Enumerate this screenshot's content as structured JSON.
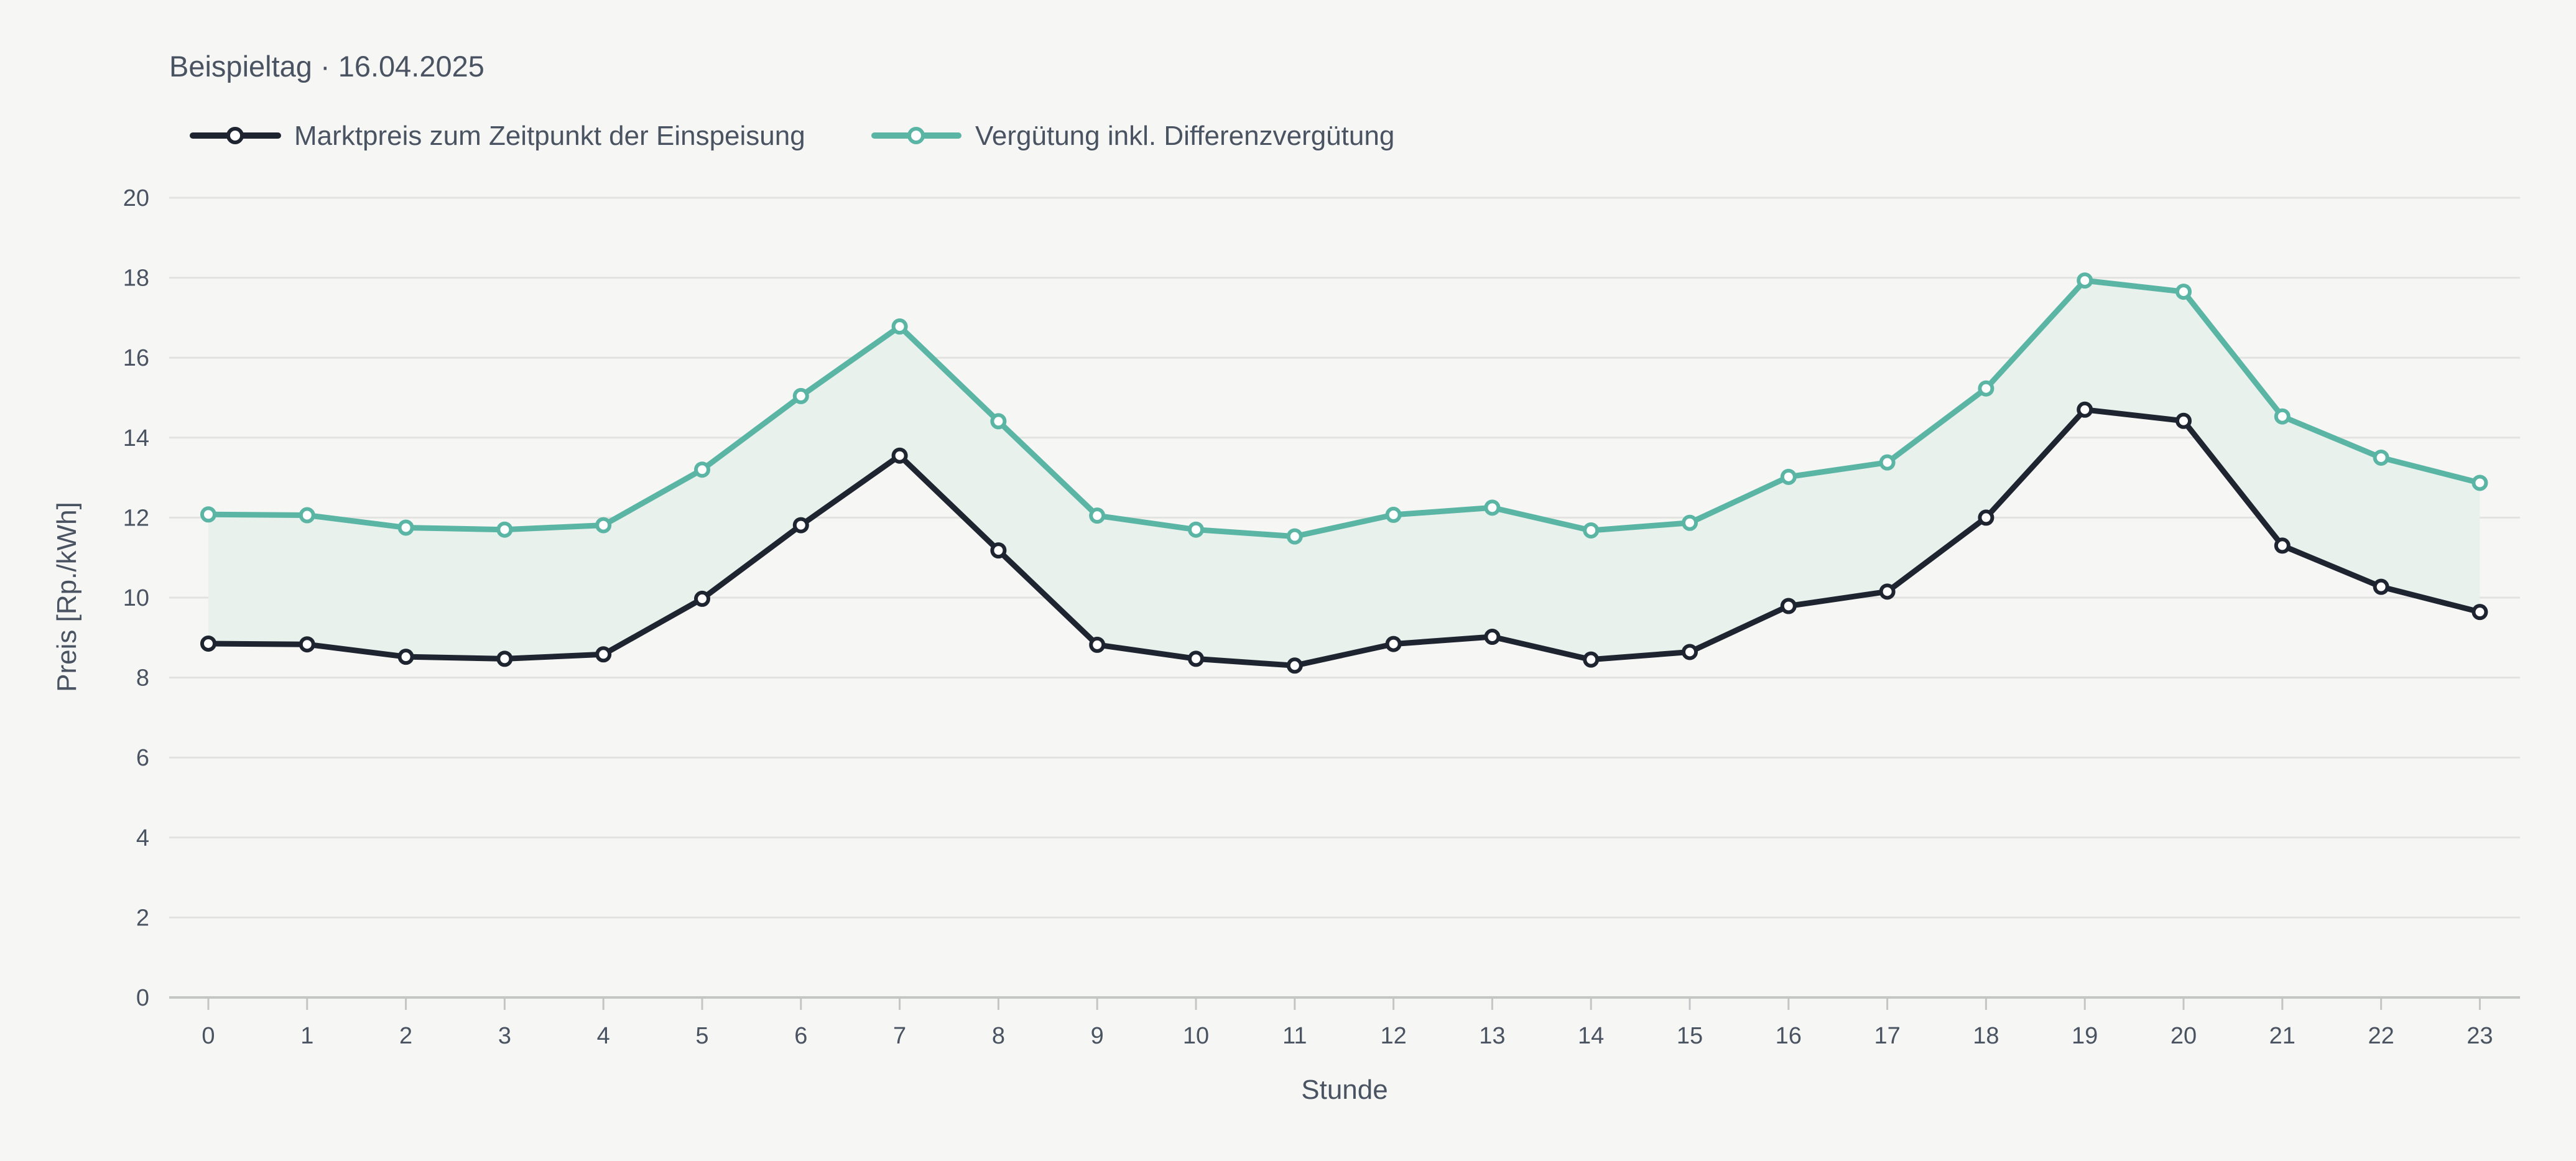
{
  "chart_data": {
    "type": "line",
    "subtitle": "Beispieltag · 16.04.2025",
    "xlabel": "Stunde",
    "ylabel": "Preis [Rp./kWh]",
    "ylim": [
      0,
      20
    ],
    "yticks": [
      "0",
      "2",
      "4",
      "6",
      "8",
      "10",
      "12",
      "14",
      "16",
      "18",
      "20"
    ],
    "categories": [
      "0",
      "1",
      "2",
      "3",
      "4",
      "5",
      "6",
      "7",
      "8",
      "9",
      "10",
      "11",
      "12",
      "13",
      "14",
      "15",
      "16",
      "17",
      "18",
      "19",
      "20",
      "21",
      "22",
      "23"
    ],
    "grid": "horizontal",
    "legend_position": "top-left",
    "shaded_band_between_series": true,
    "band_color": "#e8f1ec",
    "series": [
      {
        "name": "Marktpreis zum Zeitpunkt der Einspeisung",
        "color": "#1f2530",
        "values": [
          8.85,
          8.83,
          8.52,
          8.47,
          8.58,
          9.97,
          11.81,
          13.55,
          11.18,
          8.82,
          8.47,
          8.3,
          8.84,
          9.02,
          8.45,
          8.64,
          9.79,
          10.15,
          12.0,
          14.7,
          14.42,
          11.3,
          10.27,
          9.64
        ]
      },
      {
        "name": "Vergütung inkl. Differenzvergütung",
        "color": "#5ab5a5",
        "values": [
          12.08,
          12.06,
          11.75,
          11.7,
          11.81,
          13.2,
          15.04,
          16.78,
          14.41,
          12.05,
          11.7,
          11.53,
          12.07,
          12.25,
          11.68,
          11.87,
          13.02,
          13.38,
          15.23,
          17.93,
          17.65,
          14.53,
          13.5,
          12.87
        ]
      }
    ]
  }
}
